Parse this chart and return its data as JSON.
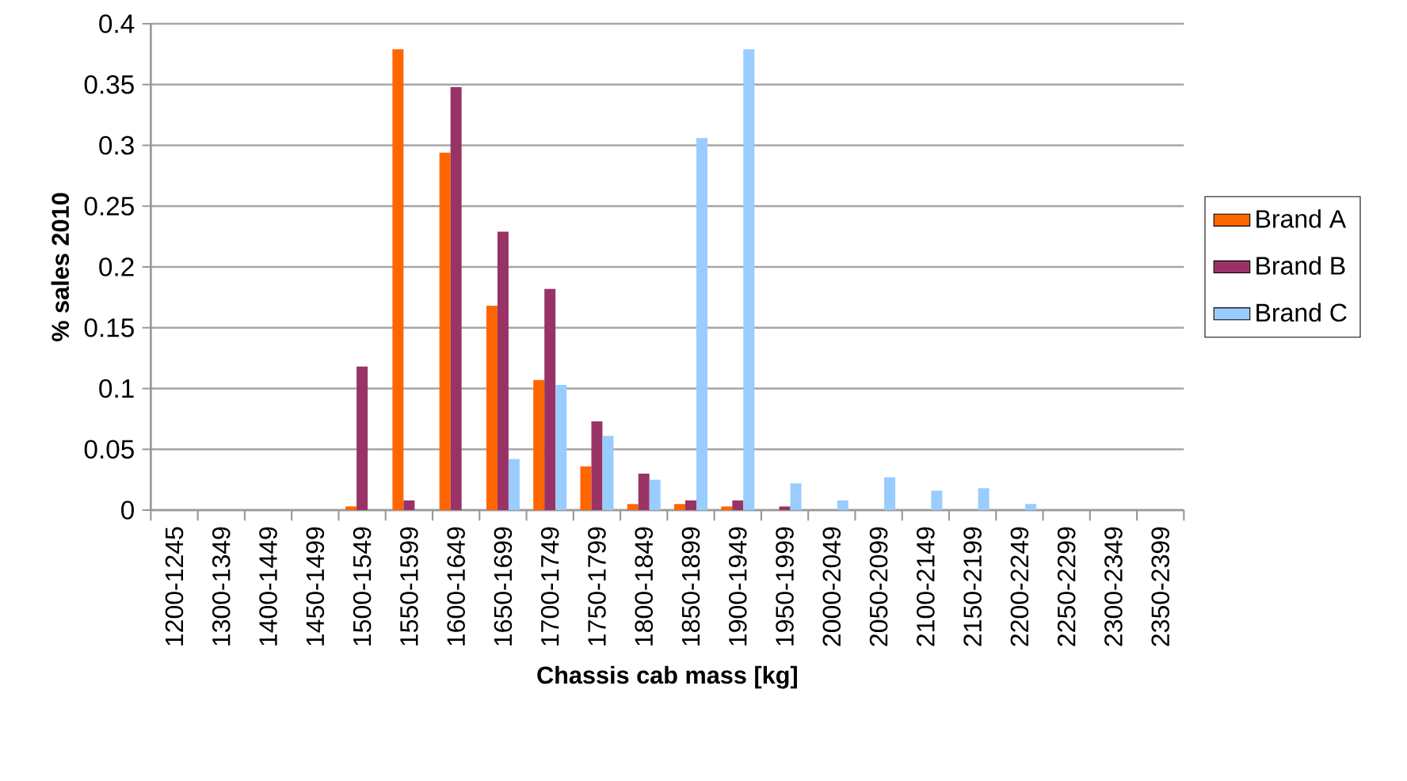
{
  "chart_data": {
    "type": "bar",
    "xlabel": "Chassis cab mass [kg]",
    "ylabel": "% sales 2010",
    "categories": [
      "1200-1245",
      "1300-1349",
      "1400-1449",
      "1450-1499",
      "1500-1549",
      "1550-1599",
      "1600-1649",
      "1650-1699",
      "1700-1749",
      "1750-1799",
      "1800-1849",
      "1850-1899",
      "1900-1949",
      "1950-1999",
      "2000-2049",
      "2050-2099",
      "2100-2149",
      "2150-2199",
      "2200-2249",
      "2250-2299",
      "2300-2349",
      "2350-2399"
    ],
    "series": [
      {
        "name": "Brand A",
        "color": "#ff6600",
        "values": [
          0,
          0,
          0,
          0,
          0.003,
          0.379,
          0.294,
          0.168,
          0.107,
          0.036,
          0.005,
          0.005,
          0.003,
          0,
          0,
          0,
          0,
          0,
          0,
          0,
          0,
          0
        ]
      },
      {
        "name": "Brand B",
        "color": "#993366",
        "values": [
          0,
          0,
          0,
          0,
          0.118,
          0.008,
          0.348,
          0.229,
          0.182,
          0.073,
          0.03,
          0.008,
          0.008,
          0.003,
          0,
          0,
          0,
          0,
          0,
          0,
          0,
          0
        ]
      },
      {
        "name": "Brand C",
        "color": "#99ccff",
        "values": [
          0,
          0,
          0,
          0,
          0,
          0,
          0,
          0.042,
          0.103,
          0.061,
          0.025,
          0.306,
          0.379,
          0.022,
          0.008,
          0.027,
          0.016,
          0.018,
          0.005,
          0,
          0,
          0
        ]
      }
    ],
    "ylim": [
      0,
      0.4
    ],
    "yticks": [
      0,
      0.05,
      0.1,
      0.15,
      0.2,
      0.25,
      0.3,
      0.35,
      0.4
    ],
    "grid": "y",
    "legend": "right"
  }
}
